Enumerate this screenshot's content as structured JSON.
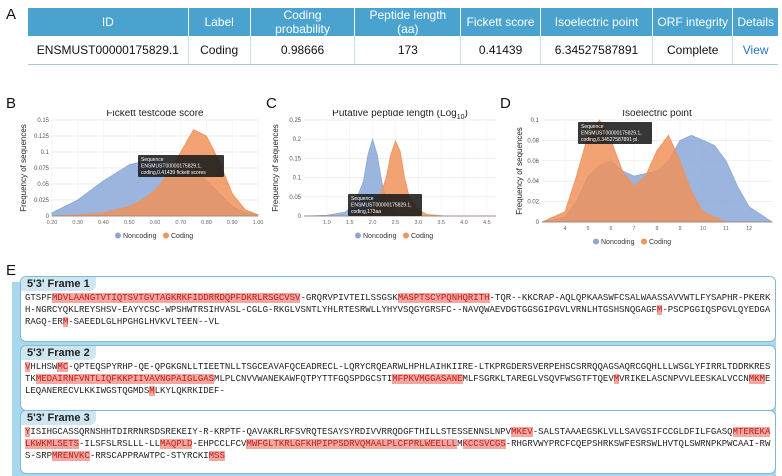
{
  "panel_labels": {
    "a": "A",
    "b": "B",
    "c": "C",
    "d": "D",
    "e": "E"
  },
  "table": {
    "headers": [
      "ID",
      "Label",
      "Coding probability",
      "Peptide length (aa)",
      "Fickett score",
      "Isoelectric point",
      "ORF integrity",
      "Details"
    ],
    "row": {
      "id": "ENSMUST00000175829.1",
      "label": "Coding",
      "coding_probability": "0.98666",
      "peptide_length": "173",
      "fickett_score": "0.41439",
      "isoelectric_point": "6.34527587891",
      "orf_integrity": "Complete",
      "details": "View"
    }
  },
  "colors": {
    "noncoding": "#8aa8d8",
    "coding": "#f0925a",
    "header": "#4aa3cf",
    "highlight": "#f3a7a3"
  },
  "chart_data": [
    {
      "type": "area",
      "title": "Fickett testcode score",
      "ylabel": "Frequency of sequences",
      "xlabel": "",
      "ylim": [
        0,
        0.15
      ],
      "yticks": [
        "0",
        "0.025",
        "0.05",
        "0.075",
        "0.1",
        "0.125",
        "0.15"
      ],
      "xlim": [
        0.2,
        1.0
      ],
      "xticks": [
        "0.20",
        "0.30",
        "0.40",
        "0.50",
        "0.60",
        "0.70",
        "0.80",
        "0.90",
        "1.00"
      ],
      "series": [
        {
          "name": "Noncoding",
          "x": [
            0.2,
            0.3,
            0.4,
            0.5,
            0.55,
            0.6,
            0.65,
            0.7,
            0.75,
            0.8,
            0.85,
            0.9,
            0.95,
            1.0
          ],
          "values": [
            0.005,
            0.025,
            0.055,
            0.08,
            0.085,
            0.09,
            0.082,
            0.085,
            0.07,
            0.055,
            0.035,
            0.015,
            0.006,
            0.002
          ]
        },
        {
          "name": "Coding",
          "x": [
            0.2,
            0.3,
            0.4,
            0.5,
            0.55,
            0.6,
            0.65,
            0.7,
            0.75,
            0.8,
            0.85,
            0.9,
            0.95,
            1.0
          ],
          "values": [
            0.0,
            0.002,
            0.005,
            0.015,
            0.025,
            0.04,
            0.065,
            0.1,
            0.135,
            0.125,
            0.085,
            0.035,
            0.01,
            0.002
          ]
        }
      ],
      "tooltip": {
        "line1": "Sequence",
        "line2": "ENSMUST00000175829.1,",
        "line3": "coding,0.41439 fickett scores"
      },
      "legend": [
        "Noncoding",
        "Coding"
      ]
    },
    {
      "type": "area",
      "title": "Putative peptide length (Log",
      "title_sub": "10",
      "title_end": ")",
      "ylabel": "Frequency of sequences",
      "xlabel": "",
      "ylim": [
        0,
        0.25
      ],
      "yticks": [
        "0",
        "0.05",
        "0.1",
        "0.15",
        "0.2",
        "0.25"
      ],
      "xlim": [
        0.5,
        4.7
      ],
      "xticks": [
        "1.0",
        "1.5",
        "2.0",
        "2.5",
        "3.0",
        "3.5",
        "4.0",
        "4.5"
      ],
      "series": [
        {
          "name": "Noncoding",
          "x": [
            0.5,
            1.0,
            1.4,
            1.6,
            1.8,
            1.9,
            2.0,
            2.1,
            2.2,
            2.3,
            2.5,
            2.8,
            3.2,
            4.7
          ],
          "values": [
            0.0,
            0.002,
            0.01,
            0.03,
            0.09,
            0.16,
            0.2,
            0.16,
            0.09,
            0.04,
            0.01,
            0.003,
            0.0,
            0.0
          ]
        },
        {
          "name": "Coding",
          "x": [
            0.5,
            1.5,
            1.9,
            2.1,
            2.3,
            2.4,
            2.5,
            2.6,
            2.7,
            2.8,
            3.0,
            3.2,
            3.6,
            4.7
          ],
          "values": [
            0.0,
            0.0,
            0.005,
            0.03,
            0.1,
            0.16,
            0.195,
            0.17,
            0.1,
            0.05,
            0.015,
            0.004,
            0.0,
            0.0
          ]
        }
      ],
      "tooltip": {
        "line1": "Sequence",
        "line2": "ENSMUST00000175829.1,",
        "line3": "coding,173aa"
      },
      "legend": [
        "Noncoding",
        "Coding"
      ]
    },
    {
      "type": "area",
      "title": "Isoelectric point",
      "ylabel": "Frequency of sequences",
      "xlabel": "",
      "ylim": [
        0,
        0.1
      ],
      "yticks": [
        "0",
        "0.02",
        "0.04",
        "0.06",
        "0.08",
        "0.1"
      ],
      "xlim": [
        3.0,
        13.0
      ],
      "xticks": [
        "4",
        "5",
        "6",
        "7",
        "8",
        "9",
        "10",
        "11",
        "12"
      ],
      "series": [
        {
          "name": "Noncoding",
          "x": [
            3.0,
            4.0,
            4.5,
            5.0,
            5.5,
            6.0,
            6.5,
            7.0,
            8.0,
            8.5,
            9.0,
            9.5,
            10.0,
            10.5,
            11.0,
            11.5,
            12.0,
            13.0
          ],
          "values": [
            0.0,
            0.005,
            0.02,
            0.045,
            0.055,
            0.06,
            0.05,
            0.045,
            0.05,
            0.06,
            0.08,
            0.085,
            0.08,
            0.075,
            0.06,
            0.035,
            0.015,
            0.0
          ]
        },
        {
          "name": "Coding",
          "x": [
            3.0,
            4.0,
            4.5,
            5.0,
            5.5,
            6.0,
            6.5,
            7.0,
            7.5,
            8.0,
            8.5,
            9.0,
            9.5,
            10.0,
            11.0,
            13.0
          ],
          "values": [
            0.0,
            0.01,
            0.045,
            0.085,
            0.1,
            0.08,
            0.05,
            0.035,
            0.045,
            0.07,
            0.085,
            0.06,
            0.03,
            0.01,
            0.0,
            0.0
          ]
        }
      ],
      "tooltip": {
        "line1": "Sequence",
        "line2": "ENSMUST00000175829.1,",
        "line3": "coding,6.34527587891 pI."
      },
      "legend": [
        "Noncoding",
        "Coding"
      ]
    }
  ],
  "frames": [
    {
      "title": "5'3' Frame 1",
      "segments": [
        {
          "t": "GTSPF",
          "h": false
        },
        {
          "t": "MDVLAANGTVTIQTSVTGVTAGKRKFIDDRRDQPFDKRLRSGCVSV",
          "h": true
        },
        {
          "t": "-GRQRVPIVTEILSSGSK",
          "h": false
        },
        {
          "t": "MASPTSCYPQNHQRITH",
          "h": true
        },
        {
          "t": "-TQR--KKCRAP-AQLQPKAASWFCSALWAASSAVVWTLFYSAPHR-PKERKH-NGRCYQKLREYSHSV-EAYYCSC-WPSHWTRSIHVASL-CGLG-RKGLVSNTLYHLRTESRWLLYHYVSQGYGRSFC--NAVQWAEVDGTGGSGIPGVLVRNLHTGSHSNQGAGF",
          "h": false
        },
        {
          "t": "M",
          "h": true
        },
        {
          "t": "-PSCPGGIQSPGVLQYEDGARAGQ-ER",
          "h": false
        },
        {
          "t": "M",
          "h": true
        },
        {
          "t": "-SAEEDLGLHPGHGLHVKVLTEEN--VL",
          "h": false
        }
      ]
    },
    {
      "title": "5'3' Frame 2",
      "segments": [
        {
          "t": "V",
          "h": true
        },
        {
          "t": "HLHSW",
          "h": false
        },
        {
          "t": "MC",
          "h": true
        },
        {
          "t": "-QPTEQSPYRHP-QE-QPGKGNLLTIEETNLLTSGCEAVAFQCEADRECL-LQRYCRQEARWLHPHLAIHKIIRE-LTKPRGDERSVERPEHSCSRRQQAGSAQRCGQHLLLWSGLYFIRRLTDDRKRESTK",
          "h": false
        },
        {
          "t": "MEDAIRNFVNTLIQFKKPIIVAVNGPAIGLGAS",
          "h": true
        },
        {
          "t": "M",
          "h": false
        },
        {
          "t": "LPLCNVVWANEKAWFQTPYTTFGQSPDGCSTI",
          "h": false
        },
        {
          "t": "MFPKVMGGASANE",
          "h": true
        },
        {
          "t": "M",
          "h": false
        },
        {
          "t": "LFSGRKLTAREGLVSQVFWSGTFTQEV",
          "h": false
        },
        {
          "t": "M",
          "h": true
        },
        {
          "t": "VRIKELASCNPVVLEESKALVCCN",
          "h": false
        },
        {
          "t": "MKM",
          "h": true
        },
        {
          "t": "ELEQANERECVLKKIWGSTQGMDS",
          "h": false
        },
        {
          "t": "M",
          "h": true
        },
        {
          "t": "LKYLQKRKIDEF-",
          "h": false
        }
      ]
    },
    {
      "title": "5'3' Frame 3",
      "segments": [
        {
          "t": "Y",
          "h": true
        },
        {
          "t": "ISIHGCASSQRNSHHTDIRRNRSDSREKEIY-R-KRPTF-QAVAKRLRFSVRQTESAYSYRDIVVRRQDGFTHILLSTESSENNSLNPV",
          "h": false
        },
        {
          "t": "MKEV",
          "h": true
        },
        {
          "t": "-SALSTAAAEGSKLVLLSAVGSIFCCGLDFILFGASQ",
          "h": false
        },
        {
          "t": "MTEREKALKWKMLSETS",
          "h": true
        },
        {
          "t": "-ILSFSLRSLLL-LL",
          "h": false
        },
        {
          "t": "MAQPLD",
          "h": true
        },
        {
          "t": "-EHPCCLFCV",
          "h": false
        },
        {
          "t": "MWFGLTKRLGFKHPIPPSDRVQMAALPLCFPRLWEELLL",
          "h": true
        },
        {
          "t": "M",
          "h": false
        },
        {
          "t": "KCCSVCGS",
          "h": true
        },
        {
          "t": "-RHGRVWYPRCFCQEPSHRKSWFESRSWLHVTQLSWRNPKPWCAAI-RWS-SRP",
          "h": false
        },
        {
          "t": "MRENVKC",
          "h": true
        },
        {
          "t": "-RRSCAPPRAWTPC-STYRCKI",
          "h": false
        },
        {
          "t": "MSS",
          "h": true
        }
      ]
    }
  ]
}
